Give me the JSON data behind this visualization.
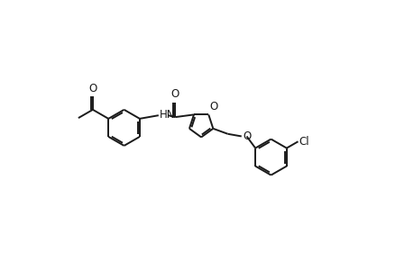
{
  "background_color": "#ffffff",
  "line_color": "#1a1a1a",
  "line_width": 1.4,
  "font_size": 8.5,
  "figsize": [
    4.6,
    3.0
  ],
  "dpi": 100,
  "xlim": [
    0,
    9.2
  ],
  "ylim": [
    0,
    6.0
  ]
}
